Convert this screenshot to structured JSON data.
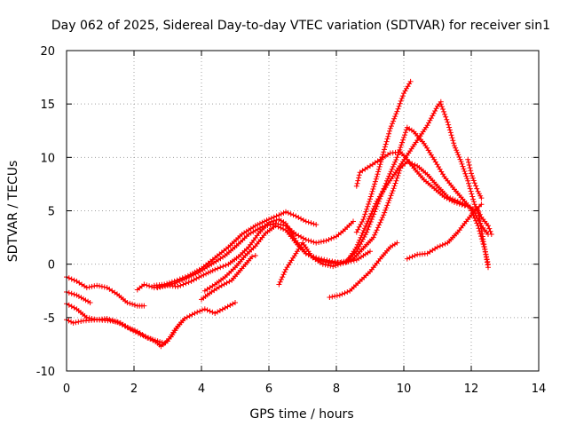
{
  "chart_data": {
    "type": "line",
    "title": "Day 062 of 2025, Sidereal Day-to-day VTEC variation (SDTVAR) for receiver sin1",
    "xlabel": "GPS time / hours",
    "ylabel": "SDTVAR / TECUs",
    "xlim": [
      0,
      14
    ],
    "ylim": [
      -10,
      20
    ],
    "x_ticks": [
      0,
      2,
      4,
      6,
      8,
      10,
      12,
      14
    ],
    "y_ticks": [
      -10,
      -5,
      0,
      5,
      10,
      15,
      20
    ],
    "x_tick_labels": [
      "0",
      "2",
      "4",
      "6",
      "8",
      "10",
      "12",
      "14"
    ],
    "y_tick_labels": [
      "-10",
      "-5",
      "0",
      "5",
      "10",
      "15",
      "20"
    ],
    "grid": true,
    "marker": "plus",
    "color": "#ff0000",
    "series": [
      {
        "name": "track-1",
        "points": [
          [
            0.0,
            -1.2
          ],
          [
            0.3,
            -1.6
          ],
          [
            0.6,
            -2.2
          ],
          [
            0.9,
            -2.0
          ],
          [
            1.2,
            -2.2
          ],
          [
            1.5,
            -2.8
          ],
          [
            1.8,
            -3.6
          ],
          [
            2.1,
            -3.9
          ],
          [
            2.3,
            -3.9
          ]
        ]
      },
      {
        "name": "track-2",
        "points": [
          [
            0.0,
            -2.6
          ],
          [
            0.3,
            -2.9
          ],
          [
            0.7,
            -3.6
          ]
        ]
      },
      {
        "name": "track-3",
        "points": [
          [
            0.0,
            -3.7
          ],
          [
            0.3,
            -4.2
          ],
          [
            0.6,
            -5.0
          ],
          [
            0.9,
            -5.2
          ],
          [
            1.2,
            -5.1
          ],
          [
            1.5,
            -5.4
          ],
          [
            1.8,
            -5.9
          ],
          [
            2.1,
            -6.3
          ],
          [
            2.4,
            -6.9
          ],
          [
            2.7,
            -7.2
          ],
          [
            2.9,
            -7.4
          ],
          [
            3.1,
            -6.8
          ],
          [
            3.3,
            -5.8
          ],
          [
            3.5,
            -5.1
          ],
          [
            3.8,
            -4.6
          ],
          [
            4.1,
            -4.2
          ],
          [
            4.4,
            -4.6
          ],
          [
            4.7,
            -4.1
          ],
          [
            5.0,
            -3.6
          ]
        ]
      },
      {
        "name": "track-4",
        "points": [
          [
            0.0,
            -5.2
          ],
          [
            0.2,
            -5.5
          ],
          [
            0.5,
            -5.3
          ],
          [
            0.9,
            -5.2
          ],
          [
            1.3,
            -5.3
          ],
          [
            1.6,
            -5.5
          ],
          [
            1.9,
            -6.1
          ],
          [
            2.2,
            -6.6
          ],
          [
            2.5,
            -7.0
          ],
          [
            2.7,
            -7.4
          ],
          [
            2.8,
            -7.7
          ],
          [
            3.0,
            -7.2
          ],
          [
            3.2,
            -6.2
          ],
          [
            3.5,
            -5.1
          ]
        ]
      },
      {
        "name": "track-5",
        "points": [
          [
            2.1,
            -2.4
          ],
          [
            2.3,
            -1.9
          ],
          [
            2.6,
            -2.2
          ],
          [
            2.9,
            -2.0
          ],
          [
            3.2,
            -1.8
          ],
          [
            3.5,
            -1.4
          ],
          [
            3.9,
            -0.8
          ],
          [
            4.3,
            0.0
          ],
          [
            4.7,
            0.8
          ],
          [
            5.1,
            1.9
          ],
          [
            5.4,
            2.8
          ],
          [
            5.8,
            3.5
          ],
          [
            6.2,
            3.8
          ],
          [
            6.5,
            3.6
          ],
          [
            6.8,
            2.8
          ],
          [
            7.1,
            2.3
          ],
          [
            7.4,
            2.0
          ],
          [
            7.7,
            2.2
          ],
          [
            8.0,
            2.6
          ],
          [
            8.2,
            3.1
          ],
          [
            8.5,
            4.0
          ]
        ]
      },
      {
        "name": "track-6",
        "points": [
          [
            2.6,
            -2.0
          ],
          [
            2.9,
            -1.9
          ],
          [
            3.2,
            -1.6
          ],
          [
            3.6,
            -1.1
          ],
          [
            4.0,
            -0.4
          ],
          [
            4.4,
            0.6
          ],
          [
            4.8,
            1.6
          ],
          [
            5.2,
            2.8
          ],
          [
            5.6,
            3.6
          ],
          [
            6.0,
            4.2
          ],
          [
            6.3,
            4.6
          ],
          [
            6.5,
            4.9
          ],
          [
            6.8,
            4.5
          ],
          [
            7.1,
            4.0
          ],
          [
            7.4,
            3.7
          ]
        ]
      },
      {
        "name": "track-7",
        "points": [
          [
            2.7,
            -2.2
          ],
          [
            3.0,
            -2.0
          ],
          [
            3.3,
            -2.1
          ],
          [
            3.7,
            -1.6
          ],
          [
            4.0,
            -1.1
          ],
          [
            4.4,
            -0.5
          ],
          [
            4.8,
            0.0
          ],
          [
            5.1,
            0.7
          ],
          [
            5.4,
            1.6
          ],
          [
            5.7,
            2.9
          ],
          [
            6.0,
            3.9
          ],
          [
            6.3,
            4.2
          ],
          [
            6.5,
            3.8
          ],
          [
            6.8,
            2.2
          ],
          [
            7.1,
            1.0
          ],
          [
            7.4,
            0.6
          ],
          [
            7.8,
            0.3
          ],
          [
            8.2,
            0.1
          ],
          [
            8.6,
            0.4
          ],
          [
            9.0,
            1.2
          ]
        ]
      },
      {
        "name": "track-8",
        "points": [
          [
            4.1,
            -2.5
          ],
          [
            4.4,
            -1.9
          ],
          [
            4.7,
            -1.2
          ],
          [
            5.0,
            -0.3
          ],
          [
            5.3,
            0.8
          ],
          [
            5.6,
            1.7
          ],
          [
            5.9,
            2.9
          ],
          [
            6.2,
            3.6
          ],
          [
            6.5,
            3.2
          ],
          [
            6.8,
            2.0
          ],
          [
            7.1,
            1.0
          ],
          [
            7.4,
            0.5
          ],
          [
            7.7,
            0.2
          ],
          [
            8.0,
            0.1
          ],
          [
            8.3,
            0.3
          ],
          [
            8.6,
            1.2
          ],
          [
            8.9,
            3.0
          ],
          [
            9.2,
            5.4
          ],
          [
            9.5,
            7.8
          ],
          [
            9.8,
            10.0
          ],
          [
            10.1,
            12.8
          ],
          [
            10.3,
            12.4
          ],
          [
            10.6,
            11.3
          ],
          [
            10.9,
            9.8
          ],
          [
            11.2,
            8.2
          ],
          [
            11.5,
            7.0
          ],
          [
            11.8,
            5.9
          ],
          [
            12.1,
            4.8
          ],
          [
            12.3,
            3.6
          ],
          [
            12.5,
            2.8
          ]
        ]
      },
      {
        "name": "track-9",
        "points": [
          [
            4.0,
            -3.3
          ],
          [
            4.3,
            -2.6
          ],
          [
            4.6,
            -2.0
          ],
          [
            4.9,
            -1.5
          ],
          [
            5.2,
            -0.4
          ],
          [
            5.5,
            0.7
          ],
          [
            5.6,
            0.8
          ]
        ]
      },
      {
        "name": "track-10",
        "points": [
          [
            6.3,
            -1.9
          ],
          [
            6.5,
            -0.5
          ],
          [
            6.8,
            1.0
          ],
          [
            7.0,
            2.0
          ],
          [
            7.3,
            0.6
          ],
          [
            7.6,
            0.0
          ],
          [
            7.9,
            -0.2
          ],
          [
            8.2,
            0.1
          ],
          [
            8.5,
            0.5
          ],
          [
            8.8,
            1.5
          ],
          [
            9.1,
            2.5
          ],
          [
            9.4,
            4.6
          ],
          [
            9.7,
            7.1
          ],
          [
            9.9,
            9.0
          ],
          [
            10.1,
            9.6
          ],
          [
            10.4,
            9.2
          ],
          [
            10.7,
            8.4
          ],
          [
            11.0,
            7.3
          ],
          [
            11.3,
            6.3
          ],
          [
            11.6,
            5.9
          ],
          [
            11.9,
            5.4
          ],
          [
            12.2,
            5.0
          ],
          [
            12.5,
            -0.3
          ]
        ]
      },
      {
        "name": "track-11",
        "points": [
          [
            7.8,
            -3.1
          ],
          [
            8.1,
            -2.9
          ],
          [
            8.4,
            -2.5
          ],
          [
            8.7,
            -1.6
          ],
          [
            9.0,
            -0.7
          ],
          [
            9.3,
            0.5
          ],
          [
            9.6,
            1.6
          ],
          [
            9.8,
            2.0
          ]
        ]
      },
      {
        "name": "track-12",
        "points": [
          [
            8.6,
            7.3
          ],
          [
            8.7,
            8.6
          ],
          [
            9.0,
            9.2
          ],
          [
            9.3,
            9.8
          ],
          [
            9.6,
            10.4
          ],
          [
            9.9,
            10.5
          ],
          [
            10.1,
            9.8
          ],
          [
            10.3,
            9.0
          ],
          [
            10.6,
            7.9
          ],
          [
            10.9,
            7.1
          ],
          [
            11.2,
            6.3
          ],
          [
            11.5,
            5.8
          ],
          [
            11.8,
            5.5
          ]
        ]
      },
      {
        "name": "track-13",
        "points": [
          [
            8.6,
            3.0
          ],
          [
            8.8,
            4.2
          ],
          [
            9.0,
            6.1
          ],
          [
            9.2,
            8.2
          ],
          [
            9.4,
            10.5
          ],
          [
            9.6,
            12.7
          ],
          [
            9.8,
            14.3
          ],
          [
            10.0,
            16.0
          ],
          [
            10.2,
            17.1
          ]
        ]
      },
      {
        "name": "track-14",
        "points": [
          [
            8.3,
            0.2
          ],
          [
            8.6,
            1.6
          ],
          [
            8.9,
            3.8
          ],
          [
            9.2,
            5.9
          ],
          [
            9.5,
            7.4
          ],
          [
            9.8,
            8.8
          ],
          [
            10.1,
            10.2
          ],
          [
            10.4,
            11.6
          ],
          [
            10.7,
            13.0
          ],
          [
            11.0,
            14.8
          ],
          [
            11.1,
            15.2
          ]
        ]
      },
      {
        "name": "track-15",
        "points": [
          [
            11.1,
            15.0
          ],
          [
            11.3,
            13.3
          ],
          [
            11.5,
            11.1
          ],
          [
            11.7,
            9.6
          ],
          [
            11.9,
            7.8
          ],
          [
            12.1,
            5.6
          ],
          [
            12.3,
            4.4
          ],
          [
            12.5,
            3.6
          ],
          [
            12.6,
            2.8
          ]
        ]
      },
      {
        "name": "track-16",
        "points": [
          [
            10.1,
            0.5
          ],
          [
            10.4,
            0.9
          ],
          [
            10.7,
            1.0
          ],
          [
            11.0,
            1.6
          ],
          [
            11.3,
            2.0
          ],
          [
            11.6,
            3.0
          ],
          [
            11.9,
            4.2
          ],
          [
            12.1,
            5.0
          ],
          [
            12.3,
            5.6
          ]
        ]
      },
      {
        "name": "track-17",
        "points": [
          [
            11.9,
            9.8
          ],
          [
            12.0,
            8.5
          ],
          [
            12.1,
            7.6
          ],
          [
            12.2,
            6.8
          ],
          [
            12.3,
            6.2
          ]
        ]
      },
      {
        "name": "track-18",
        "points": [
          [
            12.0,
            5.0
          ],
          [
            12.2,
            3.6
          ],
          [
            12.4,
            1.4
          ],
          [
            12.5,
            0.0
          ]
        ]
      }
    ]
  }
}
